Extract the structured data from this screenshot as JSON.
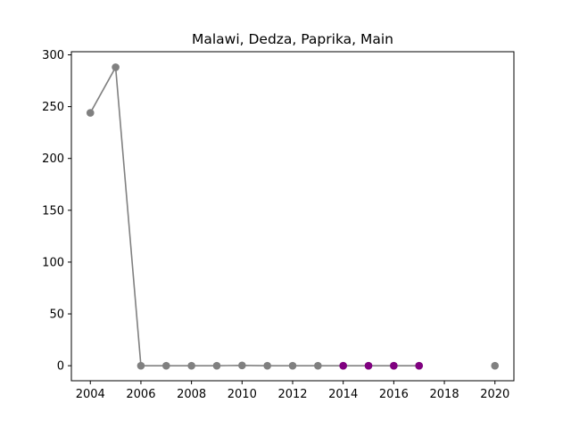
{
  "chart_data": {
    "type": "scatter",
    "title": "Malawi, Dedza, Paprika, Main",
    "xlabel": "",
    "ylabel": "",
    "xlim": [
      2003.25,
      2020.75
    ],
    "ylim": [
      -14.5,
      303
    ],
    "x_ticks": [
      2004,
      2006,
      2008,
      2010,
      2012,
      2014,
      2016,
      2018,
      2020
    ],
    "y_ticks": [
      0,
      50,
      100,
      150,
      200,
      250,
      300
    ],
    "grid": false,
    "legend": "none",
    "series": [
      {
        "color": "#808080",
        "line": true,
        "x": [
          2004,
          2005,
          2006,
          2007,
          2008,
          2009,
          2010,
          2011,
          2012,
          2013,
          2014,
          2015,
          2016,
          2017
        ],
        "y": [
          244,
          288,
          0,
          0,
          0,
          0,
          0.3,
          0,
          0,
          0,
          0,
          0,
          0,
          0
        ]
      },
      {
        "color": "#800080",
        "line": false,
        "x": [
          2014,
          2015,
          2016,
          2017
        ],
        "y": [
          0,
          0,
          0,
          0
        ]
      },
      {
        "color": "#808080",
        "line": false,
        "x": [
          2020
        ],
        "y": [
          0
        ]
      }
    ]
  }
}
